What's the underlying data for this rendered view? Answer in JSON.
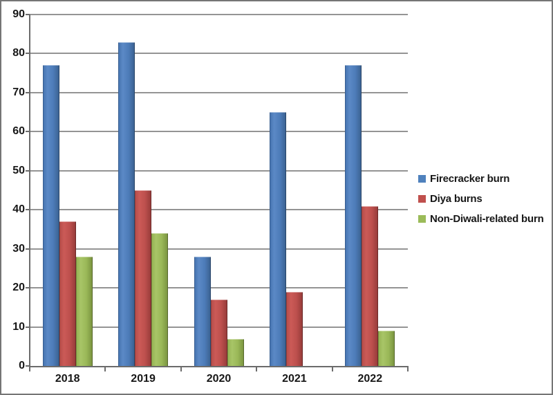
{
  "figure": {
    "background": "#ffffff",
    "border_color": "#757575"
  },
  "chart_data": {
    "type": "bar",
    "title": "",
    "xlabel": "",
    "ylabel": "",
    "categories": [
      "2018",
      "2019",
      "2020",
      "2021",
      "2022"
    ],
    "series": [
      {
        "name": "Firecracker burn",
        "color": "#4F81BD",
        "values": [
          77,
          83,
          28,
          65,
          77
        ]
      },
      {
        "name": "Diya burns",
        "color": "#C0504D",
        "values": [
          37,
          45,
          17,
          19,
          41
        ]
      },
      {
        "name": "Non-Diwali-related burn",
        "color": "#9BBB59",
        "values": [
          28,
          34,
          7,
          0,
          9
        ]
      }
    ],
    "ylim": [
      0,
      90
    ],
    "yticks": [
      0,
      10,
      20,
      30,
      40,
      50,
      60,
      70,
      80,
      90
    ],
    "grid": true,
    "gridline_color": "#949494",
    "axis_color": "#6b6b6b",
    "legend_position": "right"
  }
}
